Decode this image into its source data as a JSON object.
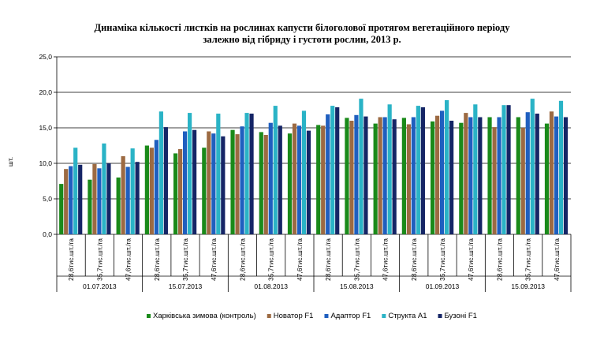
{
  "chart_data": {
    "type": "bar",
    "title_line1": "Динаміка кількості листків на рослинах капусти білоголової протягом вегетаційного періоду",
    "title_line2": "залежно від гібриду  і густоти рослин,  2013 р.",
    "ylabel": "шт.",
    "ylim": [
      0,
      25
    ],
    "yticks": [
      "0,0",
      "5,0",
      "10,0",
      "15,0",
      "20,0",
      "25,0"
    ],
    "grid": true,
    "legend_position": "bottom",
    "categories": [
      "28,6тис.шт./га",
      "35,7тис.шт./га",
      "47,6тис.шт./га",
      "28,6тис.шт./га",
      "35,7тис.шт./га",
      "47,6тис.шт./га",
      "28,6тис.шт./га",
      "35,7тис.шт./га",
      "47,6тис.шт./га",
      "28,6тис.шт./га",
      "35,7тис.шт./га",
      "47,6тис.шт./га",
      "28,6тис.шт./га",
      "35,7тис.шт./га",
      "47,6тис.шт./га",
      "28,6тис.шт./га",
      "35,7тис.шт./га",
      "47,6тис.шт./га"
    ],
    "groups": [
      "01.07.2013",
      "15.07.2013",
      "01.08.2013",
      "15.08.2013",
      "01.09.2013",
      "15.09.2013"
    ],
    "series": [
      {
        "name": "Харківська зимова (контроль)",
        "color": "#1a8a1a",
        "values": [
          7.1,
          7.7,
          8.0,
          12.5,
          11.4,
          12.2,
          14.7,
          14.4,
          14.2,
          15.4,
          16.4,
          15.6,
          16.4,
          15.9,
          15.7,
          16.5,
          16.5,
          15.6
        ]
      },
      {
        "name": "Новатор F1",
        "color": "#9c6a42",
        "values": [
          9.2,
          9.9,
          11.0,
          12.2,
          12.0,
          14.5,
          14.1,
          14.0,
          15.6,
          15.3,
          16.0,
          16.5,
          15.5,
          16.7,
          17.1,
          15.1,
          15.0,
          17.3
        ]
      },
      {
        "name": "Адаптор  F1",
        "color": "#1f5fbf",
        "values": [
          9.6,
          9.3,
          9.5,
          13.3,
          14.5,
          14.2,
          15.2,
          15.7,
          15.3,
          16.9,
          16.8,
          16.5,
          16.5,
          17.4,
          16.5,
          16.5,
          17.2,
          16.6
        ]
      },
      {
        "name": "Структа  А1",
        "color": "#2ab3c6",
        "values": [
          12.2,
          12.8,
          12.1,
          17.3,
          17.1,
          17.0,
          17.1,
          18.1,
          17.4,
          18.1,
          19.1,
          18.3,
          18.1,
          18.9,
          18.3,
          18.2,
          19.1,
          18.8
        ]
      },
      {
        "name": "Бузоні F1",
        "color": "#152566",
        "values": [
          9.8,
          10.0,
          10.2,
          15.1,
          14.7,
          13.8,
          17.0,
          15.3,
          14.6,
          17.9,
          16.6,
          16.2,
          17.9,
          16.0,
          16.5,
          18.2,
          17.0,
          16.5
        ]
      }
    ]
  }
}
